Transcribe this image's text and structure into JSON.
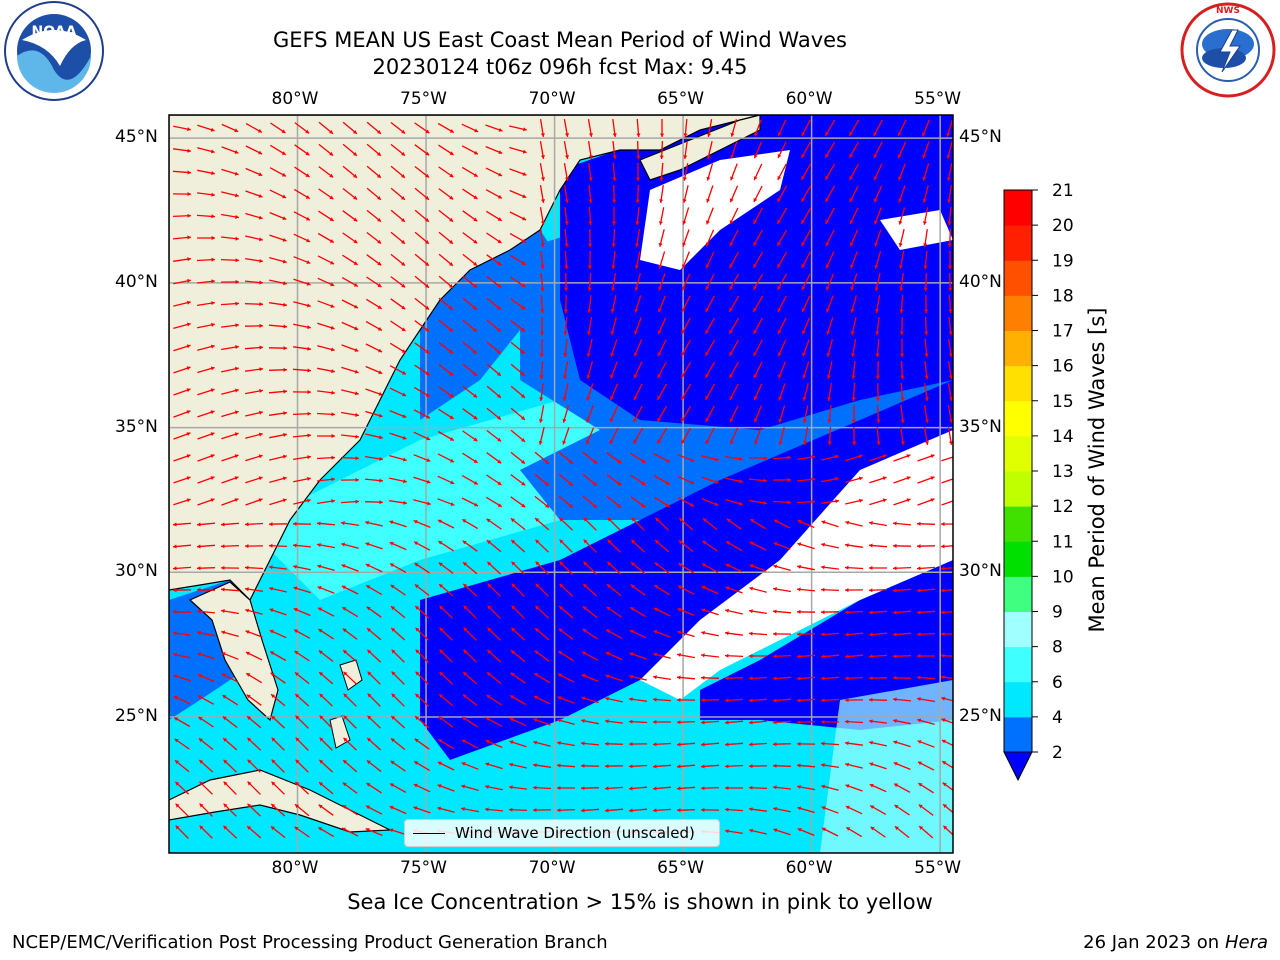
{
  "header": {
    "title_line1": "GEFS MEAN US East Coast Mean Period of Wind Waves",
    "title_line2": "20230124 t06z 096h fcst   Max: 9.45"
  },
  "logos": {
    "left": "noaa-logo",
    "right": "national-weather-service-logo"
  },
  "map": {
    "lon_labels": [
      "80°W",
      "75°W",
      "70°W",
      "65°W",
      "60°W",
      "55°W"
    ],
    "lat_labels": [
      "45°N",
      "40°N",
      "35°N",
      "30°N",
      "25°N"
    ],
    "lon_range": [
      -85,
      -54.5
    ],
    "lat_range": [
      20.3,
      45.8
    ],
    "legend_label": "Wind Wave Direction (unscaled)",
    "land_color": "#efefdc",
    "arrow_color": "#ff0000"
  },
  "colorbar": {
    "label": "Mean Period of Wind Waves [s]",
    "levels": [
      "2",
      "4",
      "6",
      "8",
      "9",
      "10",
      "11",
      "12",
      "13",
      "14",
      "15",
      "16",
      "17",
      "18",
      "19",
      "20",
      "21"
    ],
    "colors": [
      "#0070ff",
      "#00e8ff",
      "#40ffff",
      "#a0ffff",
      "#40ff80",
      "#00e000",
      "#40e000",
      "#c0ff00",
      "#e0ff00",
      "#ffff00",
      "#ffe000",
      "#ffb000",
      "#ff8000",
      "#ff5000",
      "#ff2000",
      "#ff0000"
    ],
    "under_color": "#0000ff"
  },
  "notes": {
    "sea_ice": "Sea Ice Concentration > 15% is shown in pink to yellow",
    "footer_left": "NCEP/EMC/Verification Post Processing Product Generation Branch",
    "footer_date": "26 Jan 2023 on ",
    "footer_machine": "Hera"
  }
}
